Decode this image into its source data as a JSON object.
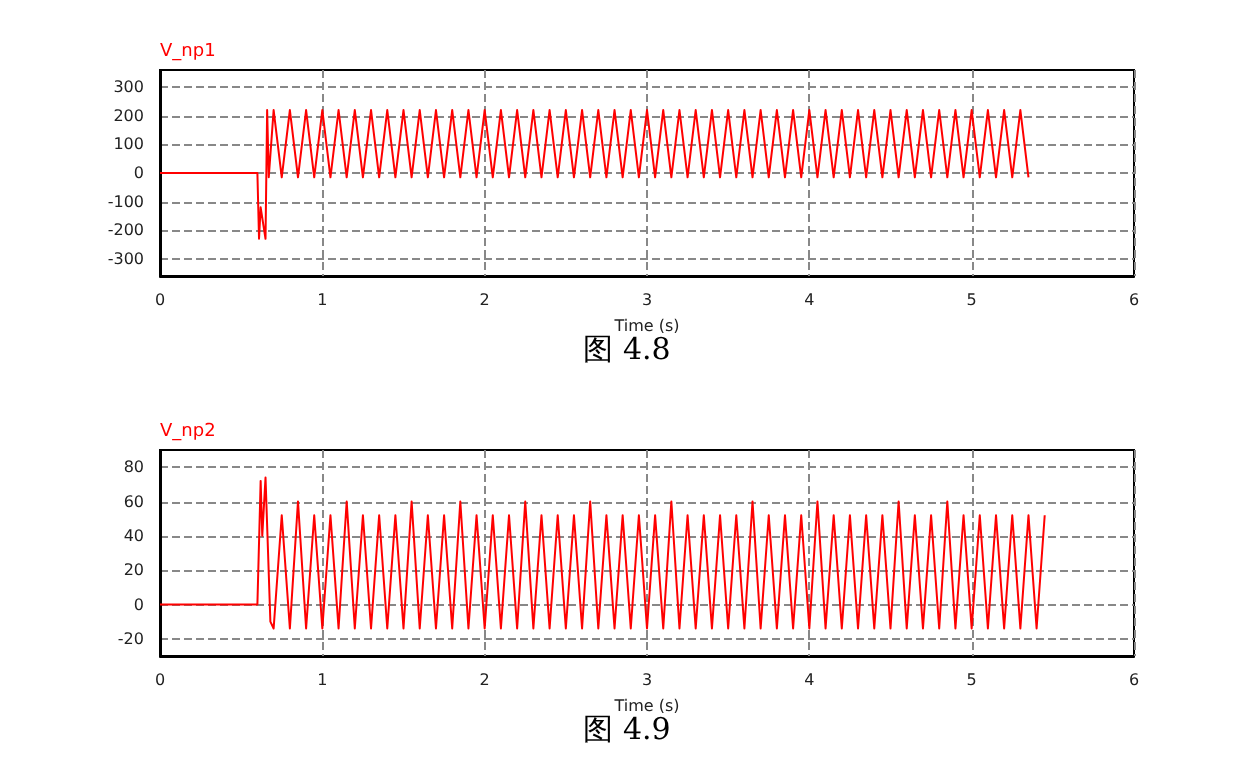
{
  "chart_data": [
    {
      "type": "line",
      "xlabel": "Time (s)",
      "annotations": [
        "图 4.8"
      ],
      "xlim": [
        0,
        6
      ],
      "xticks": [
        0,
        1,
        2,
        3,
        4,
        5,
        6
      ],
      "ylim": [
        -360,
        360
      ],
      "yticks": [
        -300,
        -200,
        -100,
        0,
        100,
        200,
        300
      ],
      "grid": true,
      "legend": "top left",
      "marker": "none",
      "x": [
        0,
        0.6,
        0.61,
        0.62,
        0.65,
        0.66,
        0.67,
        0.7,
        0.75,
        0.8,
        0.85,
        0.9,
        0.95,
        1,
        1.05,
        1.1,
        1.15,
        1.2,
        1.25,
        1.3,
        1.35,
        1.4,
        1.45,
        1.5,
        1.55,
        1.6,
        1.65,
        1.7,
        1.75,
        1.8,
        1.85,
        1.9,
        1.95,
        2,
        2.05,
        2.1,
        2.15,
        2.2,
        2.25,
        2.3,
        2.35,
        2.4,
        2.45,
        2.5,
        2.55,
        2.6,
        2.65,
        2.7,
        2.75,
        2.8,
        2.85,
        2.9,
        2.95,
        3,
        3.05,
        3.1,
        3.15,
        3.2,
        3.25,
        3.3,
        3.35,
        3.4,
        3.45,
        3.5,
        3.55,
        3.6,
        3.65,
        3.7,
        3.75,
        3.8,
        3.85,
        3.9,
        3.95,
        4,
        4.05,
        4.1,
        4.15,
        4.2,
        4.25,
        4.3,
        4.35,
        4.4,
        4.45,
        4.5,
        4.55,
        4.6,
        4.65,
        4.7,
        4.75,
        4.8,
        4.85,
        4.9,
        4.95,
        5,
        5.05,
        5.1,
        5.15,
        5.2,
        5.25,
        5.3,
        5.35
      ],
      "series": [
        {
          "name": "V_np1",
          "color": "#ff0000",
          "values": [
            0,
            0,
            -230,
            -120,
            -230,
            220,
            -15,
            220,
            -15,
            220,
            -15,
            220,
            -15,
            220,
            -15,
            220,
            -15,
            220,
            -15,
            220,
            -15,
            220,
            -15,
            220,
            -15,
            220,
            -15,
            220,
            -15,
            220,
            -15,
            220,
            -15,
            220,
            -15,
            220,
            -15,
            220,
            -15,
            220,
            -15,
            220,
            -15,
            220,
            -15,
            220,
            -15,
            220,
            -15,
            220,
            -15,
            220,
            -15,
            220,
            -15,
            220,
            -15,
            220,
            -15,
            220,
            -15,
            220,
            -15,
            220,
            -15,
            220,
            -15,
            220,
            -15,
            220,
            -15,
            220,
            -15,
            220,
            -15,
            220,
            -15,
            220,
            -15,
            220,
            -15,
            220,
            -15,
            220,
            -15,
            220,
            -15,
            220,
            -15,
            220,
            -15,
            220,
            -15,
            220,
            -15,
            220,
            -15,
            220,
            -15,
            220,
            -15
          ]
        }
      ]
    },
    {
      "type": "line",
      "xlabel": "Time (s)",
      "annotations": [
        "图 4.9"
      ],
      "xlim": [
        0,
        6
      ],
      "xticks": [
        0,
        1,
        2,
        3,
        4,
        5,
        6
      ],
      "ylim": [
        -30,
        90
      ],
      "yticks": [
        -20,
        0,
        20,
        40,
        60,
        80
      ],
      "grid": true,
      "legend": "top left",
      "marker": "none",
      "x": [
        0,
        0.6,
        0.62,
        0.63,
        0.65,
        0.68,
        0.7,
        0.75,
        0.8,
        0.85,
        0.9,
        0.95,
        1,
        1.05,
        1.1,
        1.15,
        1.2,
        1.25,
        1.3,
        1.35,
        1.4,
        1.45,
        1.5,
        1.55,
        1.6,
        1.65,
        1.7,
        1.75,
        1.8,
        1.85,
        1.9,
        1.95,
        2,
        2.05,
        2.1,
        2.15,
        2.2,
        2.25,
        2.3,
        2.35,
        2.4,
        2.45,
        2.5,
        2.55,
        2.6,
        2.65,
        2.7,
        2.75,
        2.8,
        2.85,
        2.9,
        2.95,
        3,
        3.05,
        3.1,
        3.15,
        3.2,
        3.25,
        3.3,
        3.35,
        3.4,
        3.45,
        3.5,
        3.55,
        3.6,
        3.65,
        3.7,
        3.75,
        3.8,
        3.85,
        3.9,
        3.95,
        4,
        4.05,
        4.1,
        4.15,
        4.2,
        4.25,
        4.3,
        4.35,
        4.4,
        4.45,
        4.5,
        4.55,
        4.6,
        4.65,
        4.7,
        4.75,
        4.8,
        4.85,
        4.9,
        4.95,
        5,
        5.05,
        5.1,
        5.15,
        5.2,
        5.25,
        5.3,
        5.35,
        5.4,
        5.45
      ],
      "series": [
        {
          "name": "V_np2",
          "color": "#ff0000",
          "values": [
            0,
            0,
            72,
            40,
            74,
            -10,
            -14,
            52,
            -14,
            60,
            -14,
            52,
            -14,
            52,
            -14,
            60,
            -14,
            52,
            -14,
            52,
            -14,
            52,
            -14,
            60,
            -14,
            52,
            -14,
            52,
            -14,
            60,
            -14,
            52,
            -14,
            52,
            -14,
            52,
            -14,
            60,
            -14,
            52,
            -14,
            52,
            -14,
            52,
            -14,
            60,
            -14,
            52,
            -14,
            52,
            -14,
            52,
            -14,
            52,
            -14,
            60,
            -14,
            52,
            -14,
            52,
            -14,
            52,
            -14,
            52,
            -14,
            60,
            -14,
            52,
            -14,
            52,
            -14,
            52,
            -14,
            60,
            -14,
            52,
            -14,
            52,
            -14,
            52,
            -14,
            52,
            -14,
            60,
            -14,
            52,
            -14,
            52,
            -14,
            60,
            -14,
            52,
            -14,
            52,
            -14,
            52,
            -14,
            52,
            -14,
            52,
            -14,
            52
          ]
        }
      ]
    }
  ]
}
